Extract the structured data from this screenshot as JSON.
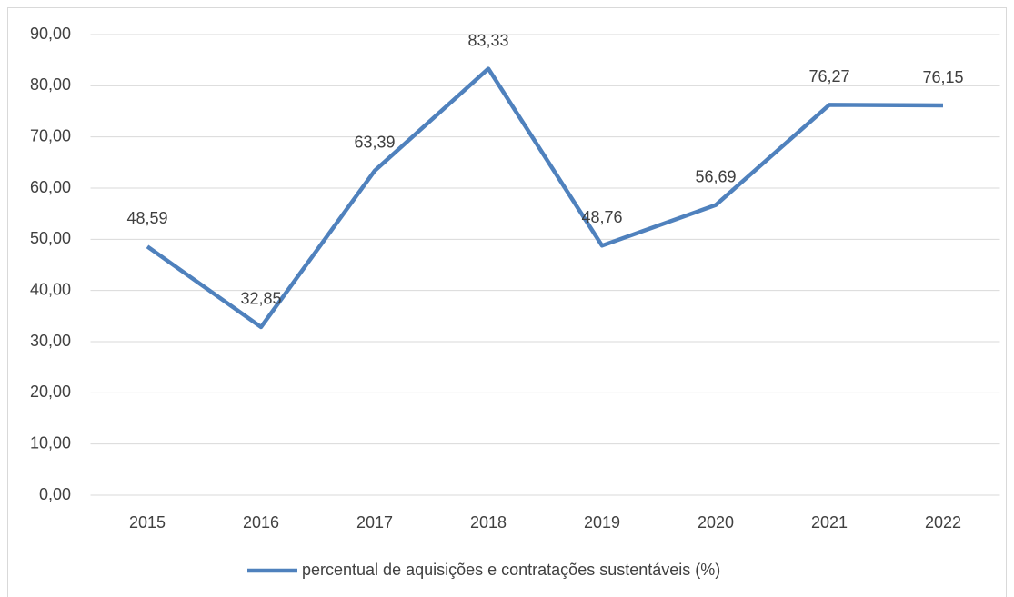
{
  "chart_data": {
    "type": "line",
    "categories": [
      "2015",
      "2016",
      "2017",
      "2018",
      "2019",
      "2020",
      "2021",
      "2022"
    ],
    "series": [
      {
        "name": "percentual de aquisições e contratações sustentáveis (%)",
        "color": "#4f81bd",
        "values": [
          48.59,
          32.85,
          63.39,
          83.33,
          48.76,
          56.69,
          76.27,
          76.15
        ],
        "value_labels": [
          "48,59",
          "32,85",
          "63,39",
          "83,33",
          "48,76",
          "56,69",
          "76,27",
          "76,15"
        ]
      }
    ],
    "ylim": [
      0,
      90
    ],
    "yticks": [
      {
        "value": 0,
        "label": "0,00"
      },
      {
        "value": 10,
        "label": "10,00"
      },
      {
        "value": 20,
        "label": "20,00"
      },
      {
        "value": 30,
        "label": "30,00"
      },
      {
        "value": 40,
        "label": "40,00"
      },
      {
        "value": 50,
        "label": "50,00"
      },
      {
        "value": 60,
        "label": "60,00"
      },
      {
        "value": 70,
        "label": "70,00"
      },
      {
        "value": 80,
        "label": "80,00"
      },
      {
        "value": 90,
        "label": "90,00"
      }
    ],
    "grid": true,
    "legend": "bottom"
  }
}
